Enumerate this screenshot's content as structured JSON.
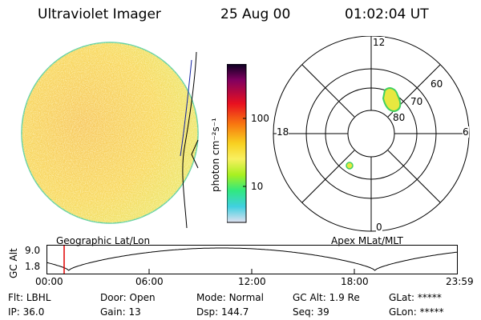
{
  "header": {
    "instrument": "Ultraviolet Imager",
    "date": "25 Aug 00",
    "time": "01:02:04 UT"
  },
  "colorbar": {
    "unit_label": "photon cm⁻²s⁻¹",
    "ticks": [
      "100",
      "10"
    ]
  },
  "polar_plot": {
    "mlt_labels": {
      "top": "12",
      "left": "18",
      "right": "6",
      "bottom": "0"
    },
    "mlat_labels": [
      "60",
      "70",
      "80"
    ]
  },
  "labels": {
    "left_projection": "Geographic Lat/Lon",
    "right_projection": "Apex MLat/MLT"
  },
  "altitude_plot": {
    "ylabel": "GC Alt",
    "yticks": [
      "9.0",
      "1.8"
    ],
    "xticks": [
      "00:00",
      "06:00",
      "12:00",
      "18:00",
      "23:59"
    ],
    "current_time_hours": 1.03
  },
  "status": {
    "row1": [
      {
        "label": "Flt:",
        "value": "LBHL"
      },
      {
        "label": "Door:",
        "value": "Open"
      },
      {
        "label": "Mode:",
        "value": "Normal"
      },
      {
        "label": "GC Alt:",
        "value": "1.9 Re"
      },
      {
        "label": "GLat:",
        "value": "*****"
      }
    ],
    "row2": [
      {
        "label": "IP:",
        "value": "36.0"
      },
      {
        "label": "Gain:",
        "value": "13"
      },
      {
        "label": "Dsp:",
        "value": "144.7"
      },
      {
        "label": "Seq:",
        "value": "39"
      },
      {
        "label": "GLon:",
        "value": "*****"
      }
    ]
  }
}
